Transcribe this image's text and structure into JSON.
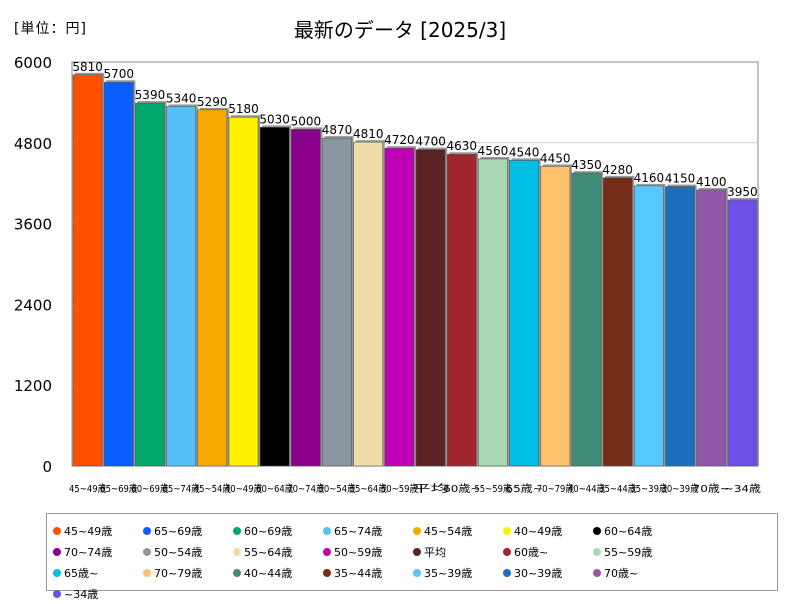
{
  "header": {
    "unit_label": "[単位：円]",
    "title": "最新のデータ [2025/3]"
  },
  "chart_data": {
    "type": "bar",
    "title": "最新のデータ [2025/3]",
    "ylabel": "[単位：円]",
    "xlabel": "",
    "ylim": [
      0,
      6000
    ],
    "yticks": [
      0,
      1200,
      2400,
      3600,
      4800,
      6000
    ],
    "grid": true,
    "legend_position": "bottom",
    "categories": [
      "45~49歳",
      "65~69歳",
      "60~69歳",
      "65~74歳",
      "45~54歳",
      "40~49歳",
      "60~64歳",
      "70~74歳",
      "50~54歳",
      "55~64歳",
      "50~59歳",
      "平均",
      "60歳~",
      "55~59歳",
      "65歳~",
      "70~79歳",
      "40~44歳",
      "35~44歳",
      "35~39歳",
      "30~39歳",
      "70歳~",
      "~34歳"
    ],
    "values": [
      5810,
      5700,
      5390,
      5340,
      5290,
      5180,
      5030,
      5000,
      4870,
      4810,
      4720,
      4700,
      4630,
      4560,
      4540,
      4450,
      4350,
      4280,
      4160,
      4150,
      4100,
      3950
    ],
    "colors": [
      "#ff5000",
      "#0a5eff",
      "#00a86b",
      "#55c0f5",
      "#f5a800",
      "#fff000",
      "#000000",
      "#8a008a",
      "#8a96a0",
      "#f0dca8",
      "#c000b4",
      "#5a2323",
      "#a0262d",
      "#aad8b4",
      "#00bee6",
      "#ffc36e",
      "#418c78",
      "#732d19",
      "#55c8ff",
      "#1e6ebe",
      "#9158aa",
      "#6e50e6"
    ]
  }
}
